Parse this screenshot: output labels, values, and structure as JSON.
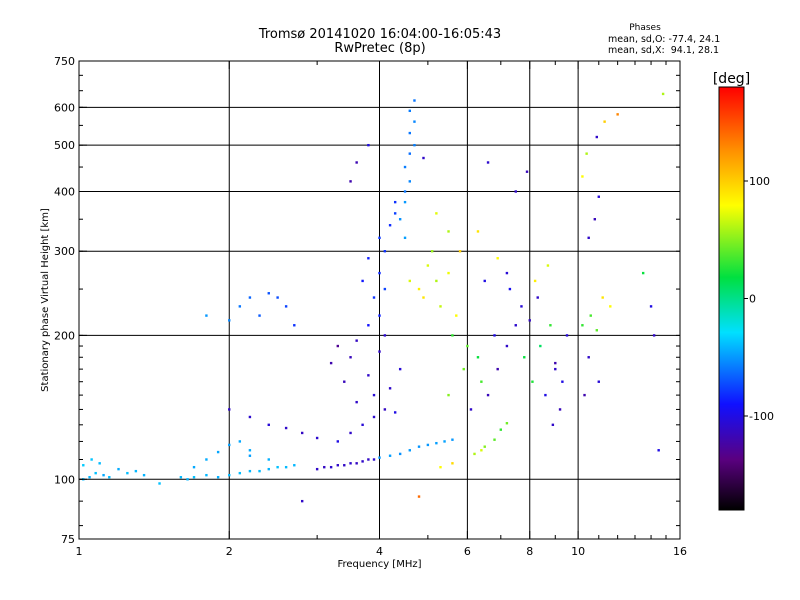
{
  "title": {
    "line1": "Tromsø 20141020 16:04:00-16:05:43",
    "line2": "RwPretec (8p)"
  },
  "phases": {
    "heading": "Phases",
    "o_line": "mean, sd,O: -77.4, 24.1",
    "x_line": "mean, sd,X:  94.1, 28.1"
  },
  "chart_data": {
    "type": "scatter",
    "xlabel": "Frequency [MHz]",
    "ylabel": "Stationary phase Virtual Height [km]",
    "x_scale": "log",
    "y_scale": "log",
    "xlim": [
      1,
      16
    ],
    "ylim": [
      75,
      750
    ],
    "x_ticks": [
      1,
      2,
      4,
      6,
      8,
      10,
      16
    ],
    "x_tick_labels": [
      "1",
      "2",
      "4",
      "6",
      "8",
      "10",
      "16"
    ],
    "y_ticks": [
      75,
      100,
      200,
      300,
      400,
      500,
      600,
      750
    ],
    "y_tick_labels": [
      "75",
      "100",
      "200",
      "300",
      "400",
      "500",
      "600",
      "750"
    ],
    "grid": true,
    "colorbar": {
      "label": "[deg]",
      "range": [
        -180,
        180
      ],
      "ticks": [
        100,
        0,
        -100
      ],
      "tick_labels": [
        "100",
        "0",
        "-100"
      ]
    },
    "series": [
      {
        "points": [
          [
            1.02,
            100,
            -40
          ],
          [
            1.05,
            101,
            -42
          ],
          [
            1.08,
            103,
            -38
          ],
          [
            1.12,
            102,
            -45
          ],
          [
            1.15,
            101,
            -40
          ],
          [
            1.2,
            105,
            -44
          ],
          [
            1.25,
            103,
            -39
          ],
          [
            1.3,
            104,
            -41
          ],
          [
            1.02,
            107,
            -35
          ],
          [
            1.06,
            110,
            -37
          ],
          [
            1.1,
            108,
            -40
          ],
          [
            1.35,
            102,
            -42
          ],
          [
            1.45,
            98,
            -38
          ],
          [
            1.6,
            101,
            -40
          ],
          [
            1.65,
            100,
            -42
          ],
          [
            1.7,
            101,
            -38
          ],
          [
            1.8,
            102,
            -41
          ],
          [
            1.9,
            101,
            -43
          ],
          [
            2.0,
            102,
            -40
          ],
          [
            2.1,
            103,
            -39
          ],
          [
            2.2,
            104,
            -41
          ],
          [
            2.3,
            104,
            -40
          ],
          [
            2.4,
            105,
            -42
          ],
          [
            2.5,
            106,
            -38
          ],
          [
            2.6,
            106,
            -40
          ],
          [
            2.7,
            107,
            -41
          ],
          [
            1.7,
            106,
            -45
          ],
          [
            1.8,
            110,
            -44
          ],
          [
            1.9,
            114,
            -46
          ],
          [
            2.0,
            118,
            -47
          ],
          [
            2.1,
            120,
            -45
          ],
          [
            2.2,
            112,
            -48
          ],
          [
            2.4,
            110,
            -43
          ],
          [
            2.2,
            115,
            -44
          ],
          [
            3.0,
            105,
            -110
          ],
          [
            3.1,
            106,
            -112
          ],
          [
            3.2,
            106,
            -108
          ],
          [
            3.3,
            107,
            -110
          ],
          [
            3.4,
            107,
            -111
          ],
          [
            3.5,
            108,
            -109
          ],
          [
            3.6,
            108,
            -112
          ],
          [
            3.7,
            109,
            -110
          ],
          [
            3.8,
            110,
            -111
          ],
          [
            3.9,
            110,
            -108
          ],
          [
            4.0,
            111,
            -50
          ],
          [
            4.2,
            112,
            -48
          ],
          [
            4.4,
            113,
            -52
          ],
          [
            4.6,
            115,
            -49
          ],
          [
            4.8,
            117,
            -51
          ],
          [
            5.0,
            118,
            -50
          ],
          [
            5.2,
            119,
            -48
          ],
          [
            5.4,
            120,
            -47
          ],
          [
            5.6,
            121,
            -50
          ],
          [
            5.3,
            106,
            80
          ],
          [
            5.6,
            108,
            95
          ],
          [
            6.2,
            113,
            60
          ],
          [
            6.5,
            117,
            50
          ],
          [
            6.8,
            121,
            40
          ],
          [
            7.0,
            127,
            30
          ],
          [
            6.4,
            115,
            70
          ],
          [
            7.2,
            131,
            45
          ],
          [
            3.3,
            120,
            -100
          ],
          [
            3.5,
            125,
            -110
          ],
          [
            3.7,
            130,
            -105
          ],
          [
            3.9,
            135,
            -108
          ],
          [
            4.1,
            140,
            -112
          ],
          [
            4.3,
            138,
            -100
          ],
          [
            3.6,
            145,
            -110
          ],
          [
            3.9,
            150,
            -105
          ],
          [
            4.2,
            155,
            -110
          ],
          [
            3.4,
            160,
            -115
          ],
          [
            3.8,
            165,
            -110
          ],
          [
            4.4,
            170,
            -105
          ],
          [
            3.2,
            175,
            -120
          ],
          [
            3.5,
            180,
            -115
          ],
          [
            4.0,
            185,
            -110
          ],
          [
            3.3,
            190,
            -130
          ],
          [
            3.6,
            195,
            -112
          ],
          [
            4.1,
            200,
            -108
          ],
          [
            3.8,
            210,
            -90
          ],
          [
            4.0,
            220,
            -85
          ],
          [
            3.9,
            240,
            -80
          ],
          [
            4.1,
            250,
            -75
          ],
          [
            3.7,
            260,
            -88
          ],
          [
            4.0,
            270,
            -82
          ],
          [
            3.8,
            290,
            -86
          ],
          [
            4.1,
            300,
            -80
          ],
          [
            4.0,
            320,
            -78
          ],
          [
            4.2,
            340,
            -82
          ],
          [
            4.3,
            360,
            -76
          ],
          [
            4.3,
            380,
            -80
          ],
          [
            4.5,
            400,
            -60
          ],
          [
            4.6,
            420,
            -55
          ],
          [
            4.5,
            450,
            -58
          ],
          [
            4.6,
            480,
            -62
          ],
          [
            4.7,
            500,
            -57
          ],
          [
            4.6,
            530,
            -60
          ],
          [
            4.7,
            560,
            -55
          ],
          [
            4.6,
            590,
            -58
          ],
          [
            4.7,
            620,
            -60
          ],
          [
            4.5,
            380,
            -50
          ],
          [
            4.4,
            350,
            -52
          ],
          [
            4.5,
            320,
            -48
          ],
          [
            3.5,
            420,
            -120
          ],
          [
            3.6,
            460,
            -118
          ],
          [
            4.9,
            470,
            -110
          ],
          [
            3.8,
            500,
            -100
          ],
          [
            4.6,
            260,
            70
          ],
          [
            4.8,
            250,
            85
          ],
          [
            5.2,
            260,
            60
          ],
          [
            5.5,
            270,
            75
          ],
          [
            5.0,
            280,
            70
          ],
          [
            4.9,
            240,
            90
          ],
          [
            5.3,
            230,
            65
          ],
          [
            5.7,
            220,
            80
          ],
          [
            5.1,
            300,
            55
          ],
          [
            5.5,
            330,
            60
          ],
          [
            5.2,
            360,
            72
          ],
          [
            5.6,
            200,
            30
          ],
          [
            6.0,
            190,
            40
          ],
          [
            6.3,
            180,
            20
          ],
          [
            5.9,
            170,
            45
          ],
          [
            6.4,
            160,
            35
          ],
          [
            5.5,
            150,
            50
          ],
          [
            6.1,
            140,
            -110
          ],
          [
            6.6,
            150,
            -115
          ],
          [
            6.9,
            170,
            -120
          ],
          [
            7.2,
            190,
            -110
          ],
          [
            6.8,
            200,
            -100
          ],
          [
            7.5,
            210,
            -108
          ],
          [
            8.0,
            215,
            -112
          ],
          [
            7.7,
            230,
            -105
          ],
          [
            8.3,
            240,
            -110
          ],
          [
            7.3,
            250,
            -95
          ],
          [
            6.5,
            260,
            -100
          ],
          [
            7.8,
            180,
            20
          ],
          [
            8.4,
            190,
            10
          ],
          [
            8.8,
            210,
            30
          ],
          [
            8.1,
            160,
            25
          ],
          [
            8.6,
            150,
            -100
          ],
          [
            9.0,
            170,
            -110
          ],
          [
            9.5,
            200,
            -105
          ],
          [
            9.2,
            140,
            -115
          ],
          [
            8.9,
            130,
            -110
          ],
          [
            10.2,
            210,
            30
          ],
          [
            10.6,
            220,
            35
          ],
          [
            10.9,
            205,
            40
          ],
          [
            11.2,
            240,
            90
          ],
          [
            11.6,
            230,
            80
          ],
          [
            10.5,
            180,
            -110
          ],
          [
            11.0,
            160,
            -105
          ],
          [
            10.3,
            150,
            -120
          ],
          [
            10.5,
            320,
            -110
          ],
          [
            10.8,
            350,
            -115
          ],
          [
            11.0,
            390,
            -105
          ],
          [
            10.2,
            430,
            80
          ],
          [
            10.4,
            480,
            60
          ],
          [
            10.9,
            520,
            -110
          ],
          [
            11.3,
            560,
            100
          ],
          [
            12.0,
            580,
            130
          ],
          [
            13.5,
            270,
            20
          ],
          [
            14.0,
            230,
            -100
          ],
          [
            14.2,
            200,
            -110
          ],
          [
            14.5,
            115,
            -100
          ],
          [
            14.8,
            640,
            60
          ],
          [
            5.8,
            300,
            100
          ],
          [
            6.3,
            330,
            90
          ],
          [
            6.9,
            290,
            80
          ],
          [
            7.2,
            270,
            -105
          ],
          [
            7.5,
            400,
            -110
          ],
          [
            7.9,
            440,
            -115
          ],
          [
            6.6,
            460,
            -108
          ],
          [
            8.2,
            260,
            85
          ],
          [
            8.7,
            280,
            70
          ],
          [
            2.2,
            240,
            -65
          ],
          [
            2.4,
            245,
            -70
          ],
          [
            2.5,
            240,
            -72
          ],
          [
            2.1,
            230,
            -60
          ],
          [
            2.0,
            215,
            -55
          ],
          [
            2.3,
            220,
            -68
          ],
          [
            1.8,
            220,
            -50
          ],
          [
            2.6,
            230,
            -75
          ],
          [
            2.7,
            210,
            -80
          ],
          [
            2.0,
            140,
            -110
          ],
          [
            2.2,
            135,
            -108
          ],
          [
            2.4,
            130,
            -105
          ],
          [
            2.6,
            128,
            -110
          ],
          [
            2.8,
            125,
            -112
          ],
          [
            3.0,
            122,
            -108
          ],
          [
            2.8,
            90,
            -110
          ],
          [
            4.8,
            92,
            140
          ],
          [
            9.0,
            175,
            -120
          ],
          [
            9.3,
            160,
            -100
          ]
        ]
      }
    ]
  }
}
